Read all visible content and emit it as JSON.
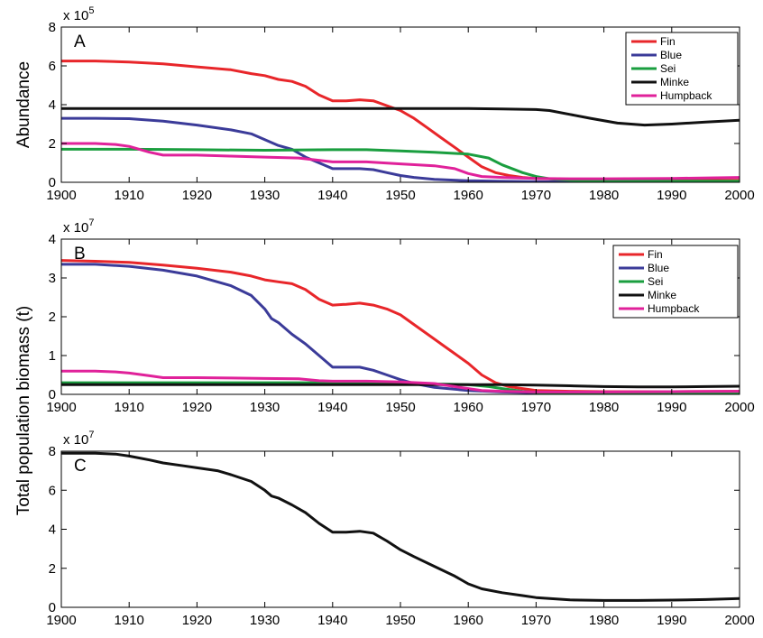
{
  "chart_data": [
    {
      "type": "line",
      "panel_label": "A",
      "ylabel": "Abundance",
      "multiplier_base": "x 10",
      "multiplier_exp": "5",
      "xlim": [
        1900,
        2000
      ],
      "ylim": [
        0,
        8
      ],
      "xticks": [
        1900,
        1910,
        1920,
        1930,
        1940,
        1950,
        1960,
        1970,
        1980,
        1990,
        2000
      ],
      "yticks": [
        0,
        2,
        4,
        6,
        8
      ],
      "legend": "top-right",
      "series": [
        {
          "name": "Fin",
          "color": "#e8262a",
          "x": [
            1900,
            1905,
            1910,
            1915,
            1920,
            1925,
            1928,
            1930,
            1932,
            1934,
            1936,
            1938,
            1940,
            1942,
            1944,
            1946,
            1948,
            1950,
            1952,
            1954,
            1956,
            1958,
            1960,
            1962,
            1964,
            1966,
            1968,
            1970,
            1975,
            1980,
            1990,
            2000
          ],
          "y": [
            6.25,
            6.25,
            6.2,
            6.1,
            5.95,
            5.8,
            5.6,
            5.5,
            5.3,
            5.2,
            4.95,
            4.5,
            4.2,
            4.2,
            4.25,
            4.2,
            3.95,
            3.7,
            3.3,
            2.8,
            2.3,
            1.8,
            1.3,
            0.8,
            0.5,
            0.35,
            0.25,
            0.2,
            0.15,
            0.12,
            0.1,
            0.1
          ]
        },
        {
          "name": "Blue",
          "color": "#3b3b99",
          "x": [
            1900,
            1905,
            1910,
            1915,
            1920,
            1925,
            1928,
            1930,
            1932,
            1934,
            1936,
            1938,
            1940,
            1942,
            1944,
            1946,
            1948,
            1950,
            1952,
            1955,
            1960,
            1965,
            1970,
            1980,
            1990,
            2000
          ],
          "y": [
            3.3,
            3.3,
            3.28,
            3.15,
            2.95,
            2.7,
            2.5,
            2.2,
            1.9,
            1.7,
            1.3,
            1.0,
            0.7,
            0.7,
            0.7,
            0.65,
            0.5,
            0.35,
            0.25,
            0.15,
            0.08,
            0.05,
            0.03,
            0.02,
            0.02,
            0.03
          ]
        },
        {
          "name": "Sei",
          "color": "#1a9e3f",
          "x": [
            1900,
            1910,
            1920,
            1930,
            1940,
            1945,
            1950,
            1955,
            1960,
            1963,
            1965,
            1968,
            1970,
            1972,
            1975,
            1980,
            1990,
            2000
          ],
          "y": [
            1.7,
            1.7,
            1.68,
            1.65,
            1.68,
            1.68,
            1.62,
            1.55,
            1.45,
            1.25,
            0.9,
            0.5,
            0.3,
            0.18,
            0.1,
            0.08,
            0.06,
            0.06
          ]
        },
        {
          "name": "Minke",
          "color": "#111111",
          "x": [
            1900,
            1920,
            1940,
            1960,
            1965,
            1970,
            1972,
            1975,
            1978,
            1982,
            1986,
            1990,
            1995,
            2000
          ],
          "y": [
            3.8,
            3.8,
            3.8,
            3.8,
            3.78,
            3.75,
            3.7,
            3.5,
            3.3,
            3.05,
            2.95,
            3.0,
            3.1,
            3.2
          ]
        },
        {
          "name": "Humpback",
          "color": "#e0219a",
          "x": [
            1900,
            1905,
            1908,
            1910,
            1913,
            1915,
            1920,
            1925,
            1930,
            1935,
            1940,
            1945,
            1950,
            1955,
            1958,
            1960,
            1962,
            1965,
            1970,
            1975,
            1980,
            1990,
            2000
          ],
          "y": [
            2.0,
            2.0,
            1.95,
            1.85,
            1.55,
            1.4,
            1.4,
            1.35,
            1.3,
            1.25,
            1.05,
            1.05,
            0.95,
            0.85,
            0.7,
            0.45,
            0.3,
            0.25,
            0.2,
            0.18,
            0.18,
            0.2,
            0.25
          ]
        }
      ]
    },
    {
      "type": "line",
      "panel_label": "B",
      "ylabel": "",
      "multiplier_base": "x 10",
      "multiplier_exp": "7",
      "xlim": [
        1900,
        2000
      ],
      "ylim": [
        0,
        4
      ],
      "xticks": [
        1900,
        1910,
        1920,
        1930,
        1940,
        1950,
        1960,
        1970,
        1980,
        1990,
        2000
      ],
      "yticks": [
        0,
        1,
        2,
        3,
        4
      ],
      "legend": "top-right",
      "series": [
        {
          "name": "Fin",
          "color": "#e8262a",
          "x": [
            1900,
            1905,
            1910,
            1915,
            1920,
            1925,
            1928,
            1930,
            1932,
            1934,
            1936,
            1938,
            1940,
            1942,
            1944,
            1946,
            1948,
            1950,
            1952,
            1954,
            1956,
            1958,
            1960,
            1962,
            1964,
            1966,
            1968,
            1970,
            1975,
            1980,
            1990,
            2000
          ],
          "y": [
            3.45,
            3.43,
            3.4,
            3.33,
            3.25,
            3.15,
            3.05,
            2.95,
            2.9,
            2.85,
            2.7,
            2.45,
            2.3,
            2.32,
            2.35,
            2.3,
            2.2,
            2.05,
            1.8,
            1.55,
            1.3,
            1.05,
            0.8,
            0.5,
            0.3,
            0.2,
            0.15,
            0.1,
            0.08,
            0.07,
            0.07,
            0.08
          ]
        },
        {
          "name": "Blue",
          "color": "#3b3b99",
          "x": [
            1900,
            1905,
            1910,
            1915,
            1920,
            1925,
            1928,
            1930,
            1931,
            1932,
            1934,
            1936,
            1938,
            1940,
            1942,
            1944,
            1946,
            1948,
            1950,
            1952,
            1955,
            1960,
            1965,
            1970,
            1980,
            1990,
            2000
          ],
          "y": [
            3.35,
            3.35,
            3.3,
            3.2,
            3.05,
            2.8,
            2.55,
            2.2,
            1.95,
            1.85,
            1.55,
            1.3,
            1.0,
            0.7,
            0.7,
            0.7,
            0.62,
            0.5,
            0.38,
            0.28,
            0.18,
            0.1,
            0.06,
            0.04,
            0.03,
            0.03,
            0.03
          ]
        },
        {
          "name": "Sei",
          "color": "#1a9e3f",
          "x": [
            1900,
            1920,
            1940,
            1950,
            1955,
            1960,
            1963,
            1965,
            1968,
            1970,
            1975,
            1980,
            1990,
            2000
          ],
          "y": [
            0.3,
            0.3,
            0.3,
            0.29,
            0.27,
            0.25,
            0.2,
            0.15,
            0.08,
            0.05,
            0.03,
            0.03,
            0.03,
            0.03
          ]
        },
        {
          "name": "Minke",
          "color": "#111111",
          "x": [
            1900,
            1920,
            1940,
            1960,
            1965,
            1970,
            1975,
            1980,
            1985,
            1990,
            1995,
            2000
          ],
          "y": [
            0.25,
            0.25,
            0.25,
            0.25,
            0.25,
            0.24,
            0.22,
            0.2,
            0.19,
            0.19,
            0.2,
            0.21
          ]
        },
        {
          "name": "Humpback",
          "color": "#e0219a",
          "x": [
            1900,
            1905,
            1908,
            1910,
            1913,
            1915,
            1920,
            1925,
            1930,
            1935,
            1938,
            1940,
            1945,
            1950,
            1955,
            1958,
            1960,
            1962,
            1965,
            1970,
            1975,
            1980,
            1990,
            2000
          ],
          "y": [
            0.6,
            0.6,
            0.58,
            0.55,
            0.48,
            0.43,
            0.43,
            0.42,
            0.41,
            0.4,
            0.35,
            0.34,
            0.34,
            0.32,
            0.28,
            0.2,
            0.15,
            0.1,
            0.08,
            0.06,
            0.06,
            0.06,
            0.07,
            0.08
          ]
        }
      ]
    },
    {
      "type": "line",
      "panel_label": "C",
      "ylabel": "",
      "multiplier_base": "x 10",
      "multiplier_exp": "7",
      "xlim": [
        1900,
        2000
      ],
      "ylim": [
        0,
        8
      ],
      "xticks": [
        1900,
        1910,
        1920,
        1930,
        1940,
        1950,
        1960,
        1970,
        1980,
        1990,
        2000
      ],
      "yticks": [
        0,
        2,
        4,
        6,
        8
      ],
      "legend": "none",
      "series": [
        {
          "name": "",
          "color": "#111111",
          "x": [
            1900,
            1905,
            1908,
            1910,
            1913,
            1915,
            1918,
            1920,
            1923,
            1925,
            1928,
            1930,
            1931,
            1932,
            1934,
            1936,
            1938,
            1940,
            1942,
            1944,
            1946,
            1948,
            1950,
            1952,
            1955,
            1958,
            1960,
            1962,
            1965,
            1968,
            1970,
            1975,
            1980,
            1985,
            1990,
            1995,
            2000
          ],
          "y": [
            7.9,
            7.9,
            7.85,
            7.75,
            7.55,
            7.4,
            7.25,
            7.15,
            7.0,
            6.8,
            6.45,
            6.0,
            5.7,
            5.6,
            5.25,
            4.85,
            4.3,
            3.85,
            3.85,
            3.9,
            3.8,
            3.4,
            2.95,
            2.6,
            2.1,
            1.6,
            1.2,
            0.95,
            0.75,
            0.6,
            0.5,
            0.38,
            0.35,
            0.35,
            0.37,
            0.4,
            0.45
          ]
        }
      ]
    }
  ],
  "shared_ylabel": "Total population biomass (t)"
}
